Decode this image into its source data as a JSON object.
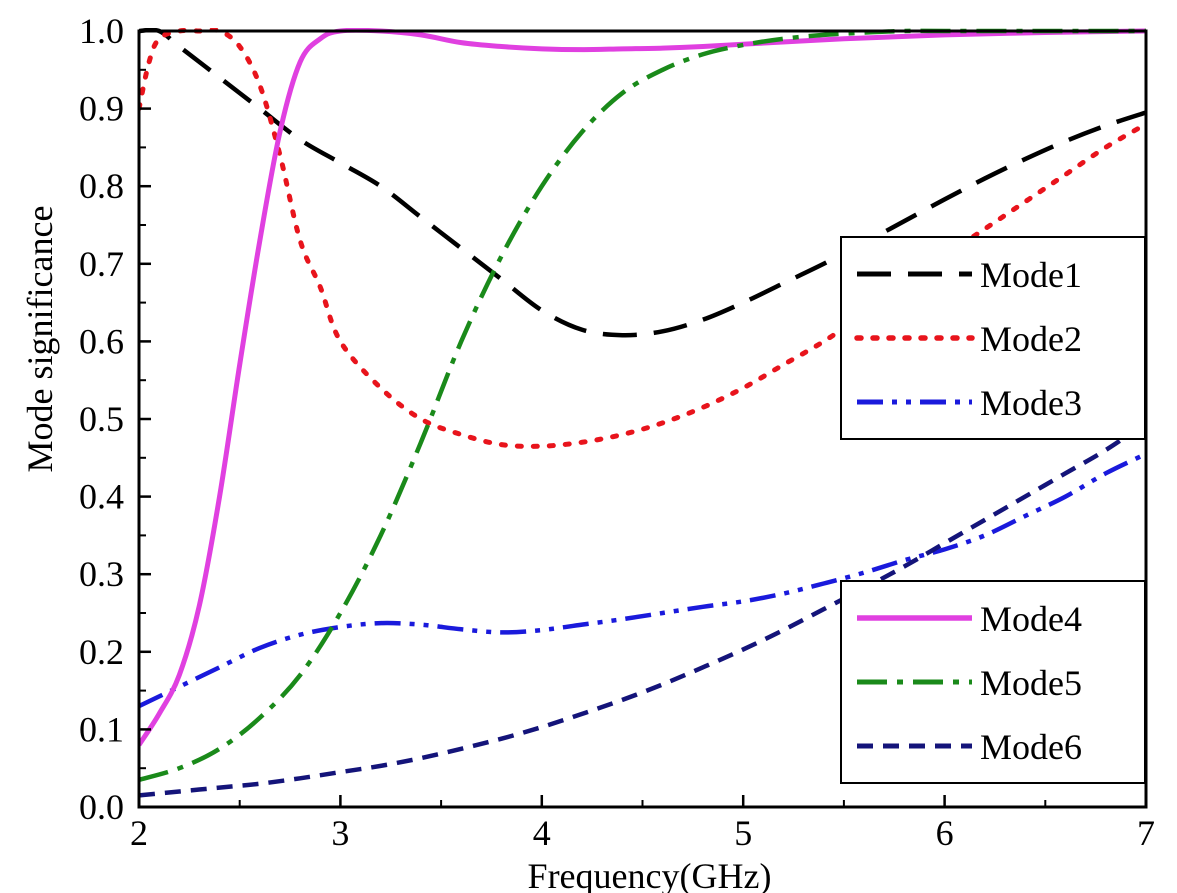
{
  "chart_data": {
    "type": "line",
    "title": "",
    "xlabel": "Frequency(GHz)",
    "ylabel": "Mode significance",
    "xlim": [
      2,
      7
    ],
    "ylim": [
      0,
      1
    ],
    "x_ticks": [
      "2",
      "3",
      "4",
      "5",
      "6",
      "7"
    ],
    "y_ticks": [
      "0.0",
      "0.1",
      "0.2",
      "0.3",
      "0.4",
      "0.5",
      "0.6",
      "0.7",
      "0.8",
      "0.9",
      "1.0"
    ],
    "grid": false,
    "legends": [
      {
        "placement": "right-middle",
        "entries": [
          "Mode1",
          "Mode2",
          "Mode3"
        ]
      },
      {
        "placement": "bottom-right",
        "entries": [
          "Mode4",
          "Mode5",
          "Mode6"
        ]
      }
    ],
    "series": [
      {
        "name": "Mode1",
        "color": "#000000",
        "style": "dash",
        "x": [
          2.0,
          2.1,
          2.2,
          2.4,
          2.6,
          2.8,
          3.0,
          3.2,
          3.4,
          3.6,
          3.8,
          4.0,
          4.2,
          4.4,
          4.6,
          4.8,
          5.0,
          5.2,
          5.4,
          5.6,
          5.8,
          6.0,
          6.2,
          6.4,
          6.6,
          6.8,
          7.0
        ],
        "y": [
          1.0,
          1.0,
          0.98,
          0.94,
          0.9,
          0.86,
          0.83,
          0.8,
          0.76,
          0.72,
          0.68,
          0.64,
          0.615,
          0.608,
          0.613,
          0.628,
          0.65,
          0.675,
          0.7,
          0.727,
          0.755,
          0.783,
          0.81,
          0.835,
          0.858,
          0.878,
          0.895
        ]
      },
      {
        "name": "Mode2",
        "color": "#e8141c",
        "style": "dot",
        "x": [
          2.0,
          2.05,
          2.1,
          2.2,
          2.3,
          2.4,
          2.5,
          2.6,
          2.7,
          2.8,
          2.9,
          3.0,
          3.2,
          3.4,
          3.6,
          3.8,
          4.0,
          4.2,
          4.4,
          4.6,
          4.8,
          5.0,
          5.2,
          5.4,
          5.6,
          5.8,
          6.0,
          6.2,
          6.4,
          6.6,
          6.8,
          7.0
        ],
        "y": [
          0.9,
          0.96,
          0.99,
          1.0,
          1.0,
          1.0,
          0.98,
          0.93,
          0.84,
          0.73,
          0.67,
          0.6,
          0.54,
          0.5,
          0.48,
          0.467,
          0.465,
          0.47,
          0.48,
          0.495,
          0.515,
          0.54,
          0.57,
          0.6,
          0.635,
          0.67,
          0.71,
          0.745,
          0.78,
          0.815,
          0.85,
          0.88
        ]
      },
      {
        "name": "Mode3",
        "color": "#1a1adc",
        "style": "dashdotdot",
        "x": [
          2.0,
          2.2,
          2.4,
          2.6,
          2.8,
          3.0,
          3.2,
          3.4,
          3.6,
          3.8,
          4.0,
          4.2,
          4.4,
          4.6,
          4.8,
          5.0,
          5.2,
          5.4,
          5.6,
          5.8,
          6.0,
          6.2,
          6.4,
          6.6,
          6.8,
          7.0
        ],
        "y": [
          0.13,
          0.155,
          0.18,
          0.205,
          0.222,
          0.232,
          0.237,
          0.235,
          0.229,
          0.225,
          0.228,
          0.235,
          0.242,
          0.25,
          0.258,
          0.265,
          0.275,
          0.288,
          0.302,
          0.318,
          0.332,
          0.35,
          0.375,
          0.4,
          0.43,
          0.455
        ]
      },
      {
        "name": "Mode4",
        "color": "#e040e0",
        "style": "solid",
        "x": [
          2.0,
          2.1,
          2.2,
          2.3,
          2.4,
          2.5,
          2.6,
          2.7,
          2.8,
          2.9,
          3.0,
          3.2,
          3.4,
          3.6,
          3.8,
          4.0,
          4.2,
          4.4,
          4.6,
          4.8,
          5.0,
          5.5,
          6.0,
          6.5,
          7.0
        ],
        "y": [
          0.08,
          0.12,
          0.17,
          0.26,
          0.4,
          0.57,
          0.73,
          0.87,
          0.96,
          0.99,
          1.0,
          1.0,
          0.995,
          0.985,
          0.98,
          0.977,
          0.976,
          0.977,
          0.978,
          0.98,
          0.983,
          0.99,
          0.995,
          0.998,
          1.0
        ]
      },
      {
        "name": "Mode5",
        "color": "#1a8a1a",
        "style": "dashdot",
        "x": [
          2.0,
          2.2,
          2.4,
          2.6,
          2.8,
          3.0,
          3.2,
          3.4,
          3.6,
          3.8,
          4.0,
          4.2,
          4.4,
          4.6,
          4.8,
          5.0,
          5.2,
          5.4,
          5.6,
          5.8,
          6.0,
          6.5,
          7.0
        ],
        "y": [
          0.035,
          0.05,
          0.075,
          0.115,
          0.17,
          0.25,
          0.35,
          0.47,
          0.6,
          0.71,
          0.8,
          0.87,
          0.92,
          0.95,
          0.97,
          0.982,
          0.99,
          0.995,
          0.998,
          1.0,
          1.0,
          1.0,
          1.0
        ]
      },
      {
        "name": "Mode6",
        "color": "#14147a",
        "style": "shortdash",
        "x": [
          2.0,
          2.2,
          2.4,
          2.6,
          2.8,
          3.0,
          3.2,
          3.4,
          3.6,
          3.8,
          4.0,
          4.2,
          4.4,
          4.6,
          4.8,
          5.0,
          5.2,
          5.4,
          5.6,
          5.8,
          6.0,
          6.2,
          6.4,
          6.6,
          6.8,
          7.0
        ],
        "y": [
          0.015,
          0.02,
          0.025,
          0.03,
          0.037,
          0.045,
          0.053,
          0.063,
          0.075,
          0.088,
          0.103,
          0.12,
          0.138,
          0.158,
          0.18,
          0.203,
          0.228,
          0.255,
          0.282,
          0.31,
          0.34,
          0.37,
          0.4,
          0.43,
          0.46,
          0.495
        ]
      }
    ]
  }
}
